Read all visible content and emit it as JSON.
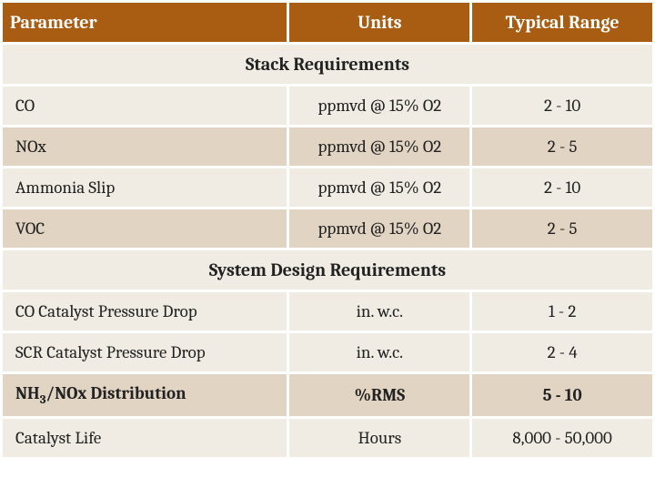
{
  "header": {
    "parameter": "Parameter",
    "units": "Units",
    "range": "Typical Range"
  },
  "sections": {
    "stack": "Stack Requirements",
    "system": "System Design Requirements"
  },
  "rows": {
    "co": {
      "param": "CO",
      "units": "ppmvd @ 15% O2",
      "range": "2 - 10"
    },
    "nox": {
      "param": "NOx",
      "units": "ppmvd @ 15% O2",
      "range": "2 - 5"
    },
    "ammonia": {
      "param": "Ammonia Slip",
      "units": "ppmvd @ 15% O2",
      "range": "2 - 10"
    },
    "voc": {
      "param": "VOC",
      "units": "ppmvd @ 15% O2",
      "range": "2 - 5"
    },
    "co_pd": {
      "param": "CO Catalyst Pressure Drop",
      "units": "in. w.c.",
      "range": "1 - 2"
    },
    "scr_pd": {
      "param": "SCR Catalyst Pressure Drop",
      "units": "in. w.c.",
      "range": "2 - 4"
    },
    "nh3_dist": {
      "param_html": "NH<sub>3</sub>/NOx Distribution",
      "units": "%RMS",
      "range": "5 - 10"
    },
    "cat_life": {
      "param": "Catalyst Life",
      "units": "Hours",
      "range": "8,000 - 50,000"
    }
  },
  "colors": {
    "header_bg": "#a95d13",
    "header_fg": "#ffffff",
    "light_bg": "#f0ece4",
    "dark_bg": "#e2d4c3",
    "border": "#ffffff"
  }
}
